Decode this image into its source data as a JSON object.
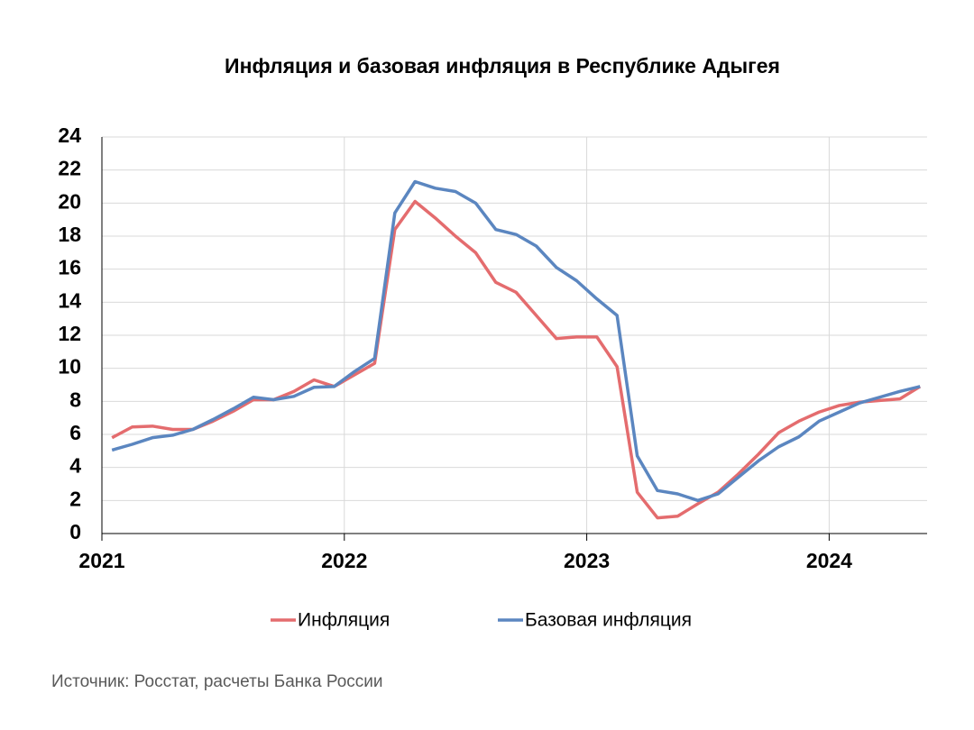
{
  "chart_data": {
    "type": "line",
    "title": "Инфляция и базовая инфляция в Республике Адыгея",
    "categories": [
      "2021",
      null,
      null,
      null,
      null,
      null,
      null,
      null,
      null,
      null,
      null,
      null,
      "2022",
      null,
      null,
      null,
      null,
      null,
      null,
      null,
      null,
      null,
      null,
      null,
      "2023",
      null,
      null,
      null,
      null,
      null,
      null,
      null,
      null,
      null,
      null,
      null,
      "2024",
      null,
      null,
      null,
      null
    ],
    "series": [
      {
        "name": "Инфляция",
        "color": "#e46c6e",
        "values": [
          5.8,
          6.45,
          6.5,
          6.3,
          6.3,
          6.8,
          7.4,
          8.1,
          8.1,
          8.6,
          9.3,
          8.9,
          9.6,
          10.3,
          18.4,
          20.1,
          19.1,
          18.0,
          17.0,
          15.2,
          14.6,
          13.2,
          11.8,
          11.9,
          11.9,
          10.1,
          2.5,
          0.95,
          1.05,
          1.8,
          2.5,
          3.6,
          4.8,
          6.1,
          6.8,
          7.35,
          7.75,
          7.95,
          8.05,
          8.15,
          8.9
        ]
      },
      {
        "name": "Базовая инфляция",
        "color": "#5b86c0",
        "values": [
          5.05,
          5.4,
          5.8,
          5.95,
          6.3,
          6.9,
          7.55,
          8.25,
          8.1,
          8.3,
          8.85,
          8.9,
          9.8,
          10.6,
          19.4,
          21.3,
          20.9,
          20.7,
          20.0,
          18.4,
          18.1,
          17.4,
          16.1,
          15.3,
          14.2,
          13.2,
          4.7,
          2.6,
          2.4,
          2.0,
          2.4,
          3.4,
          4.4,
          5.25,
          5.85,
          6.8,
          7.35,
          7.9,
          8.25,
          8.6,
          8.9
        ]
      }
    ],
    "ylim": [
      0,
      24
    ],
    "yticks": [
      0,
      2,
      4,
      6,
      8,
      10,
      12,
      14,
      16,
      18,
      20,
      22,
      24
    ],
    "grid": true,
    "legend": "bottom",
    "source": "Источник: Росстат, расчеты Банка России"
  }
}
